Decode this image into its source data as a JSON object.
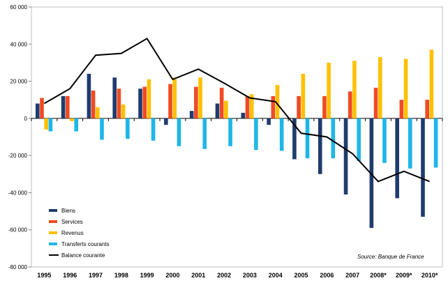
{
  "chart_data": {
    "type": "bar",
    "categories": [
      "1995",
      "1996",
      "1997",
      "1998",
      "1999",
      "2000",
      "2001",
      "2002",
      "2003",
      "2004",
      "2005",
      "2006",
      "2007",
      "2008*",
      "2009*",
      "2010*"
    ],
    "ylim": [
      -80000,
      60000
    ],
    "yticks": [
      "60 000",
      "40 000",
      "20 000",
      "0",
      "-20 000",
      "-40 000",
      "-60 000",
      "-80 000"
    ],
    "ytick_values": [
      60000,
      40000,
      20000,
      0,
      -20000,
      -40000,
      -60000,
      -80000
    ],
    "grid": false,
    "legend_position": "bottom-left",
    "series": [
      {
        "name": "Biens",
        "type": "bar",
        "color": "#1f3c6e",
        "values": [
          8000,
          12000,
          24000,
          22000,
          16000,
          -3500,
          4000,
          8000,
          3000,
          -3500,
          -22000,
          -30000,
          -41000,
          -59000,
          -43000,
          -53000
        ]
      },
      {
        "name": "Services",
        "type": "bar",
        "color": "#f04a23",
        "values": [
          11000,
          12000,
          15000,
          16000,
          17000,
          18500,
          17000,
          16500,
          12000,
          12000,
          12000,
          12000,
          14500,
          16500,
          10000,
          10000
        ]
      },
      {
        "name": "Revenus",
        "type": "bar",
        "color": "#ffc000",
        "values": [
          -6000,
          -1500,
          6000,
          7500,
          21000,
          22000,
          22000,
          9500,
          13000,
          18000,
          24000,
          30000,
          31000,
          33000,
          32000,
          37000
        ]
      },
      {
        "name": "Transferts courants",
        "type": "bar",
        "color": "#1eb6e8",
        "values": [
          -7000,
          -7000,
          -11500,
          -11000,
          -12000,
          -15000,
          -16500,
          -15000,
          -17000,
          -17500,
          -21500,
          -21500,
          -23000,
          -24000,
          -27000,
          -26500
        ]
      },
      {
        "name": "Balance courante",
        "type": "line",
        "color": "#000000",
        "values": [
          8000,
          16000,
          34000,
          35000,
          43000,
          21000,
          26500,
          19000,
          11000,
          9000,
          -8000,
          -10000,
          -19000,
          -34000,
          -28500,
          -34000
        ]
      }
    ],
    "annotation": "Source: Banque de France"
  }
}
